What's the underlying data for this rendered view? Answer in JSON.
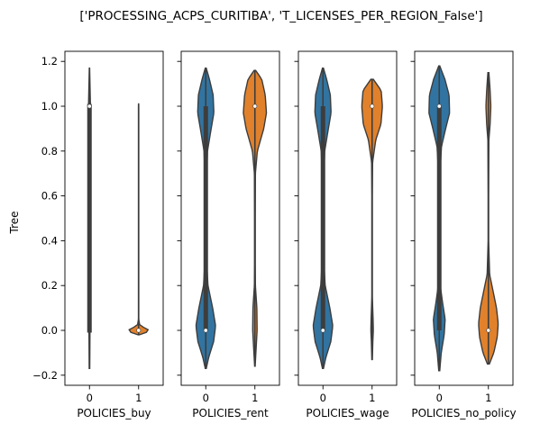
{
  "figure": {
    "title": "['PROCESSING_ACPS_CURITIBA', 'T_LICENSES_PER_REGION_False']"
  },
  "chart_data": {
    "type": "violin",
    "ylabel": "Tree",
    "ylim": [
      -0.245,
      1.245
    ],
    "yticks": [
      -0.2,
      0.0,
      0.2,
      0.4,
      0.6,
      0.8,
      1.0,
      1.2
    ],
    "ytick_labels": [
      "−0.2",
      "0.0",
      "0.2",
      "0.4",
      "0.6",
      "0.8",
      "1.0",
      "1.2"
    ],
    "categories": [
      "0",
      "1"
    ],
    "colors": {
      "0": "#3274a1",
      "1": "#e1812c",
      "outline": "#3d3d3d"
    },
    "panels": [
      {
        "xlabel": "POLICIES_buy",
        "violins": [
          {
            "category": "0",
            "min": -0.17,
            "max": 1.17,
            "q1": -0.01,
            "q3": 1.01,
            "median": 1.0,
            "profile": [
              [
                -0.17,
                0.01
              ],
              [
                0.0,
                0.02
              ],
              [
                0.2,
                0.01
              ],
              [
                0.5,
                0.01
              ],
              [
                0.8,
                0.01
              ],
              [
                1.0,
                0.04
              ],
              [
                1.1,
                0.02
              ],
              [
                1.17,
                0.005
              ]
            ]
          },
          {
            "category": "1",
            "min": -0.02,
            "max": 1.01,
            "q1": 0.0,
            "q3": 0.0,
            "median": 0.0,
            "profile": [
              [
                -0.02,
                0.02
              ],
              [
                -0.01,
                0.3
              ],
              [
                0.0,
                0.42
              ],
              [
                0.01,
                0.3
              ],
              [
                0.02,
                0.05
              ],
              [
                0.05,
                0.005
              ],
              [
                1.0,
                0.005
              ],
              [
                1.01,
                0.003
              ]
            ]
          }
        ]
      },
      {
        "xlabel": "POLICIES_rent",
        "violins": [
          {
            "category": "0",
            "min": -0.17,
            "max": 1.17,
            "q1": 0.0,
            "q3": 1.0,
            "median": 0.0,
            "profile": [
              [
                -0.17,
                0.02
              ],
              [
                -0.12,
                0.12
              ],
              [
                -0.05,
                0.32
              ],
              [
                0.02,
                0.4
              ],
              [
                0.1,
                0.28
              ],
              [
                0.2,
                0.09
              ],
              [
                0.3,
                0.04
              ],
              [
                0.5,
                0.03
              ],
              [
                0.7,
                0.04
              ],
              [
                0.8,
                0.07
              ],
              [
                0.9,
                0.22
              ],
              [
                0.97,
                0.33
              ],
              [
                1.05,
                0.3
              ],
              [
                1.12,
                0.15
              ],
              [
                1.17,
                0.02
              ]
            ]
          },
          {
            "category": "1",
            "min": -0.16,
            "max": 1.16,
            "q1": 1.0,
            "q3": 1.0,
            "median": 1.0,
            "profile": [
              [
                -0.16,
                0.01
              ],
              [
                -0.1,
                0.04
              ],
              [
                0.0,
                0.09
              ],
              [
                0.1,
                0.08
              ],
              [
                0.2,
                0.02
              ],
              [
                0.3,
                0.015
              ],
              [
                0.5,
                0.015
              ],
              [
                0.7,
                0.02
              ],
              [
                0.8,
                0.1
              ],
              [
                0.9,
                0.36
              ],
              [
                0.97,
                0.47
              ],
              [
                1.05,
                0.42
              ],
              [
                1.12,
                0.28
              ],
              [
                1.16,
                0.03
              ]
            ]
          }
        ]
      },
      {
        "xlabel": "POLICIES_wage",
        "violins": [
          {
            "category": "0",
            "min": -0.17,
            "max": 1.17,
            "q1": 0.0,
            "q3": 1.0,
            "median": 0.0,
            "profile": [
              [
                -0.17,
                0.02
              ],
              [
                -0.12,
                0.12
              ],
              [
                -0.05,
                0.32
              ],
              [
                0.02,
                0.4
              ],
              [
                0.1,
                0.28
              ],
              [
                0.2,
                0.09
              ],
              [
                0.3,
                0.04
              ],
              [
                0.5,
                0.03
              ],
              [
                0.7,
                0.04
              ],
              [
                0.8,
                0.07
              ],
              [
                0.9,
                0.22
              ],
              [
                0.97,
                0.33
              ],
              [
                1.05,
                0.3
              ],
              [
                1.12,
                0.15
              ],
              [
                1.17,
                0.02
              ]
            ]
          },
          {
            "category": "1",
            "min": -0.13,
            "max": 1.12,
            "q1": 1.0,
            "q3": 1.0,
            "median": 1.0,
            "profile": [
              [
                -0.13,
                0.01
              ],
              [
                -0.05,
                0.03
              ],
              [
                0.0,
                0.05
              ],
              [
                0.05,
                0.04
              ],
              [
                0.15,
                0.01
              ],
              [
                0.3,
                0.01
              ],
              [
                0.6,
                0.01
              ],
              [
                0.75,
                0.02
              ],
              [
                0.85,
                0.15
              ],
              [
                0.92,
                0.36
              ],
              [
                1.0,
                0.42
              ],
              [
                1.07,
                0.37
              ],
              [
                1.12,
                0.05
              ]
            ]
          }
        ]
      },
      {
        "xlabel": "POLICIES_no_policy",
        "violins": [
          {
            "category": "0",
            "min": -0.18,
            "max": 1.18,
            "q1": 0.0,
            "q3": 1.0,
            "median": 1.0,
            "profile": [
              [
                -0.18,
                0.02
              ],
              [
                -0.1,
                0.08
              ],
              [
                -0.02,
                0.2
              ],
              [
                0.05,
                0.24
              ],
              [
                0.12,
                0.14
              ],
              [
                0.2,
                0.04
              ],
              [
                0.4,
                0.02
              ],
              [
                0.7,
                0.03
              ],
              [
                0.82,
                0.09
              ],
              [
                0.9,
                0.26
              ],
              [
                0.97,
                0.42
              ],
              [
                1.05,
                0.4
              ],
              [
                1.12,
                0.23
              ],
              [
                1.18,
                0.02
              ]
            ]
          },
          {
            "category": "1",
            "min": -0.15,
            "max": 1.15,
            "q1": 0.0,
            "q3": 0.0,
            "median": 0.0,
            "profile": [
              [
                -0.15,
                0.04
              ],
              [
                -0.1,
                0.22
              ],
              [
                -0.03,
                0.36
              ],
              [
                0.03,
                0.4
              ],
              [
                0.1,
                0.33
              ],
              [
                0.17,
                0.2
              ],
              [
                0.25,
                0.05
              ],
              [
                0.4,
                0.01
              ],
              [
                0.6,
                0.01
              ],
              [
                0.85,
                0.02
              ],
              [
                0.92,
                0.07
              ],
              [
                1.0,
                0.1
              ],
              [
                1.07,
                0.07
              ],
              [
                1.15,
                0.02
              ]
            ]
          }
        ]
      }
    ]
  }
}
